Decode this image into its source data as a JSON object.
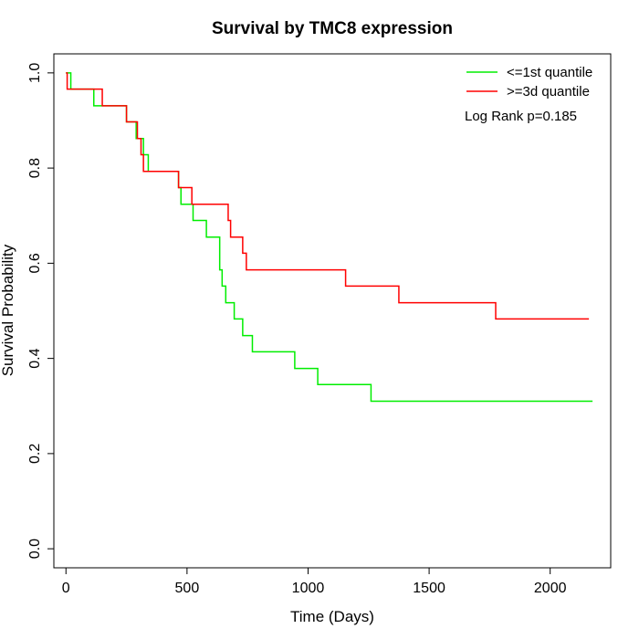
{
  "chart_data": {
    "type": "line",
    "title": "Survival by TMC8 expression",
    "xlabel": "Time (Days)",
    "ylabel": "Survival Probability",
    "xlim": [
      -50,
      2250
    ],
    "ylim": [
      -0.04,
      1.04
    ],
    "x_ticks": [
      0,
      500,
      1000,
      1500,
      2000
    ],
    "x_tick_labels": [
      "0",
      "500",
      "1000",
      "1500",
      "2000"
    ],
    "y_ticks": [
      0,
      0.2,
      0.4,
      0.6,
      0.8,
      1.0
    ],
    "y_tick_labels": [
      "0.0",
      "0.2",
      "0.4",
      "0.6",
      "0.8",
      "1.0"
    ],
    "grid": false,
    "legend_position": "top-right",
    "annotation": "Log Rank p=0.185",
    "series": [
      {
        "name": "<=1st quantile",
        "color": "#00ee00",
        "step": true,
        "x": [
          0,
          20,
          115,
          250,
          290,
          320,
          340,
          465,
          475,
          525,
          580,
          635,
          645,
          660,
          695,
          730,
          770,
          945,
          1040,
          1260,
          2175
        ],
        "y": [
          1.0,
          0.966,
          0.931,
          0.897,
          0.862,
          0.828,
          0.793,
          0.759,
          0.724,
          0.69,
          0.655,
          0.586,
          0.552,
          0.517,
          0.483,
          0.448,
          0.414,
          0.379,
          0.345,
          0.31,
          0.31
        ]
      },
      {
        "name": ">=3d quantile",
        "color": "#ff0000",
        "step": true,
        "x": [
          0,
          5,
          150,
          250,
          295,
          310,
          320,
          465,
          520,
          670,
          680,
          730,
          745,
          1155,
          1375,
          1775,
          2160
        ],
        "y": [
          1.0,
          0.966,
          0.931,
          0.897,
          0.862,
          0.828,
          0.793,
          0.759,
          0.724,
          0.69,
          0.655,
          0.621,
          0.586,
          0.552,
          0.517,
          0.483,
          0.483
        ]
      }
    ]
  }
}
